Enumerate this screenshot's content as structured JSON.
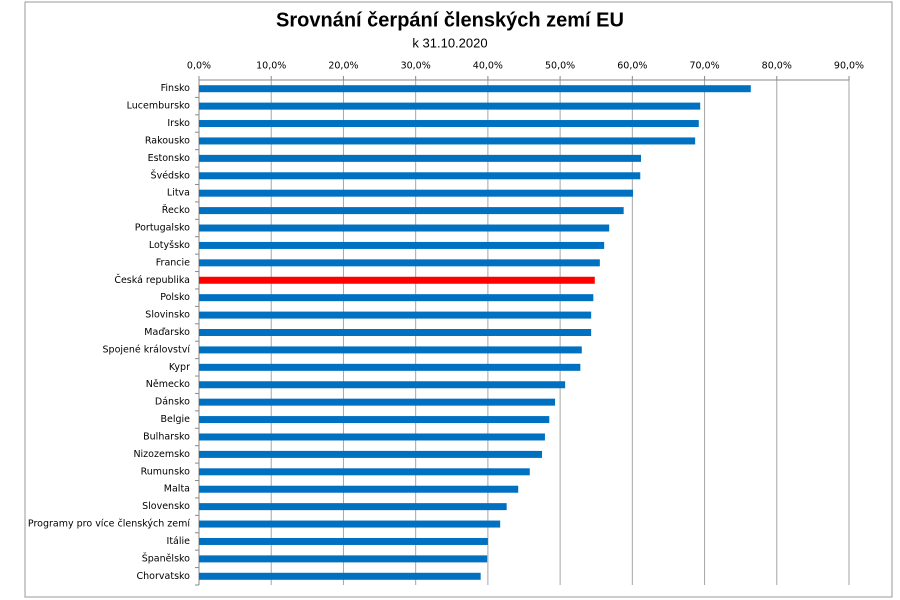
{
  "chart_data": {
    "type": "bar",
    "orientation": "horizontal",
    "title": "Srovnání čerpání členských zemí EU",
    "subtitle": "k 31.10.2020",
    "categories": [
      "Finsko",
      "Lucembursko",
      "Irsko",
      "Rakousko",
      "Estonsko",
      "Švédsko",
      "Litva",
      "Řecko",
      "Portugalsko",
      "Lotyšsko",
      "Francie",
      "Česká republika",
      "Polsko",
      "Slovinsko",
      "Maďarsko",
      "Spojené království",
      "Kypr",
      "Německo",
      "Dánsko",
      "Belgie",
      "Bulharsko",
      "Nizozemsko",
      "Rumunsko",
      "Malta",
      "Slovensko",
      "Programy pro více členských zemí",
      "Itálie",
      "Španělsko",
      "Chorvatsko"
    ],
    "values": [
      76.4,
      69.4,
      69.2,
      68.7,
      61.2,
      61.1,
      60.1,
      58.8,
      56.8,
      56.1,
      55.5,
      54.8,
      54.6,
      54.3,
      54.3,
      53.0,
      52.8,
      50.7,
      49.3,
      48.5,
      47.9,
      47.5,
      45.8,
      44.2,
      42.6,
      41.7,
      40.0,
      39.9,
      39.0
    ],
    "colors": [
      "#0070c0",
      "#0070c0",
      "#0070c0",
      "#0070c0",
      "#0070c0",
      "#0070c0",
      "#0070c0",
      "#0070c0",
      "#0070c0",
      "#0070c0",
      "#0070c0",
      "#ff0000",
      "#0070c0",
      "#0070c0",
      "#0070c0",
      "#0070c0",
      "#0070c0",
      "#0070c0",
      "#0070c0",
      "#0070c0",
      "#0070c0",
      "#0070c0",
      "#0070c0",
      "#0070c0",
      "#0070c0",
      "#0070c0",
      "#0070c0",
      "#0070c0",
      "#0070c0"
    ],
    "xlim": [
      0,
      90
    ],
    "xticks": [
      {
        "value": 0,
        "label": "0,0%"
      },
      {
        "value": 10,
        "label": "10,0%"
      },
      {
        "value": 20,
        "label": "20,0%"
      },
      {
        "value": 30,
        "label": "30,0%"
      },
      {
        "value": 40,
        "label": "40,0%"
      },
      {
        "value": 50,
        "label": "50,0%"
      },
      {
        "value": 60,
        "label": "60,0%"
      },
      {
        "value": 70,
        "label": "70,0%"
      },
      {
        "value": 80,
        "label": "80,0%"
      },
      {
        "value": 90,
        "label": "90,0%"
      }
    ],
    "grid": true
  }
}
